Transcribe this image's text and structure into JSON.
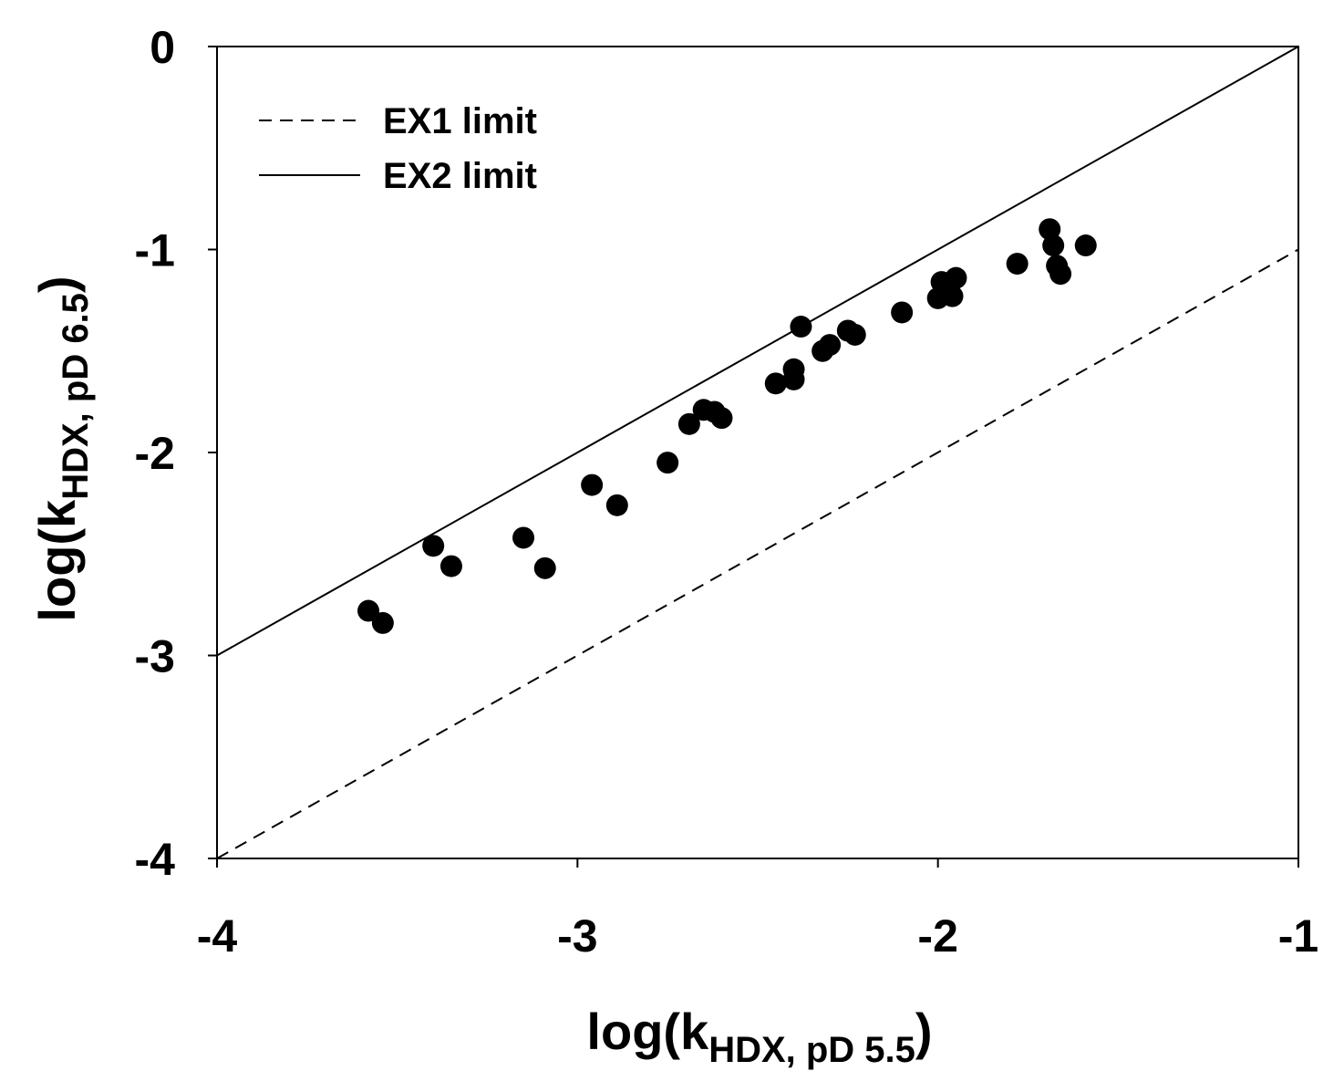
{
  "chart_data": {
    "type": "scatter",
    "title": "",
    "xlabel": {
      "prefix": "log(k",
      "sub": "HDX, pD 5.5",
      "suffix": ")"
    },
    "ylabel": {
      "prefix": "log(k",
      "sub": "HDX, pD 6.5",
      "suffix": ")"
    },
    "xlim": [
      -4,
      -1
    ],
    "ylim": [
      -4,
      0
    ],
    "xticks": [
      -4,
      -3,
      -2,
      -1
    ],
    "yticks": [
      -4,
      -3,
      -2,
      -1,
      0
    ],
    "xtick_labels": [
      "-4",
      "-3",
      "-2",
      "-1"
    ],
    "ytick_labels": [
      "-4",
      "-3",
      "-2",
      "-1",
      "0"
    ],
    "grid": false,
    "legend_position": "top-left",
    "lines": [
      {
        "name": "EX1 limit",
        "style": "dashed",
        "x": [
          -4,
          -1
        ],
        "y": [
          -4,
          -1
        ]
      },
      {
        "name": "EX2 limit",
        "style": "solid",
        "x": [
          -4,
          -1
        ],
        "y": [
          -3,
          0
        ]
      }
    ],
    "series": [
      {
        "name": "",
        "color": "#000000",
        "points": [
          {
            "x": -3.58,
            "y": -2.78
          },
          {
            "x": -3.54,
            "y": -2.84
          },
          {
            "x": -3.4,
            "y": -2.46
          },
          {
            "x": -3.35,
            "y": -2.56
          },
          {
            "x": -3.15,
            "y": -2.42
          },
          {
            "x": -3.09,
            "y": -2.57
          },
          {
            "x": -2.96,
            "y": -2.16
          },
          {
            "x": -2.89,
            "y": -2.26
          },
          {
            "x": -2.75,
            "y": -2.05
          },
          {
            "x": -2.69,
            "y": -1.86
          },
          {
            "x": -2.65,
            "y": -1.79
          },
          {
            "x": -2.62,
            "y": -1.8
          },
          {
            "x": -2.6,
            "y": -1.83
          },
          {
            "x": -2.45,
            "y": -1.66
          },
          {
            "x": -2.4,
            "y": -1.59
          },
          {
            "x": -2.4,
            "y": -1.64
          },
          {
            "x": -2.38,
            "y": -1.38
          },
          {
            "x": -2.32,
            "y": -1.5
          },
          {
            "x": -2.3,
            "y": -1.47
          },
          {
            "x": -2.25,
            "y": -1.4
          },
          {
            "x": -2.23,
            "y": -1.42
          },
          {
            "x": -2.1,
            "y": -1.31
          },
          {
            "x": -2.0,
            "y": -1.24
          },
          {
            "x": -1.99,
            "y": -1.16
          },
          {
            "x": -1.96,
            "y": -1.23
          },
          {
            "x": -1.95,
            "y": -1.14
          },
          {
            "x": -1.78,
            "y": -1.07
          },
          {
            "x": -1.69,
            "y": -0.9
          },
          {
            "x": -1.68,
            "y": -0.98
          },
          {
            "x": -1.67,
            "y": -1.08
          },
          {
            "x": -1.66,
            "y": -1.12
          },
          {
            "x": -1.59,
            "y": -0.98
          }
        ]
      }
    ]
  }
}
